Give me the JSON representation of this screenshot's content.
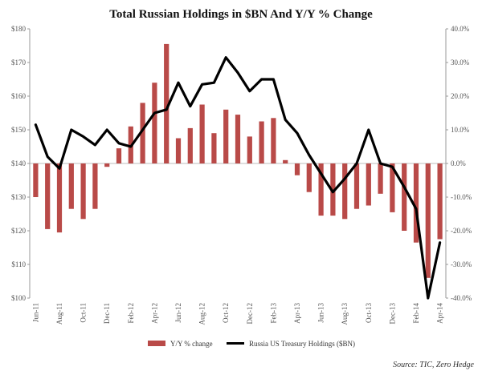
{
  "chart_data": {
    "type": "bar+line",
    "title": "Total Russian Holdings in $BN And Y/Y % Change",
    "source": "Source: TIC, Zero Hedge",
    "left_axis": {
      "ylim": [
        100,
        180
      ],
      "ticks": [
        "$100",
        "$110",
        "$120",
        "$130",
        "$140",
        "$150",
        "$160",
        "$170",
        "$180"
      ]
    },
    "right_axis": {
      "ylim": [
        -40,
        40
      ],
      "ticks": [
        "-40.0%",
        "-30.0%",
        "-20.0%",
        "-10.0%",
        "0.0%",
        "10.0%",
        "20.0%",
        "30.0%",
        "40.0%"
      ]
    },
    "x_tick_labels": [
      "Jun-11",
      "Aug-11",
      "Oct-11",
      "Dec-11",
      "Feb-12",
      "Apr-12",
      "Jun-12",
      "Aug-12",
      "Oct-12",
      "Dec-12",
      "Feb-13",
      "Apr-13",
      "Jun-13",
      "Aug-13",
      "Oct-13",
      "Dec-13",
      "Feb-14",
      "Apr-14"
    ],
    "categories": [
      "Jun-11",
      "Jul-11",
      "Aug-11",
      "Sep-11",
      "Oct-11",
      "Nov-11",
      "Dec-11",
      "Jan-12",
      "Feb-12",
      "Mar-12",
      "Apr-12",
      "May-12",
      "Jun-12",
      "Jul-12",
      "Aug-12",
      "Sep-12",
      "Oct-12",
      "Nov-12",
      "Dec-12",
      "Jan-13",
      "Feb-13",
      "Mar-13",
      "Apr-13",
      "May-13",
      "Jun-13",
      "Jul-13",
      "Aug-13",
      "Sep-13",
      "Oct-13",
      "Nov-13",
      "Dec-13",
      "Jan-14",
      "Feb-14",
      "Mar-14",
      "Apr-14"
    ],
    "series": [
      {
        "name": "Y/Y % change",
        "kind": "bar",
        "axis": "right",
        "color": "#b94a48",
        "values": [
          -10,
          -19.5,
          -20.5,
          -13.5,
          -16.5,
          -13.5,
          -1,
          4.5,
          11,
          18,
          24,
          35.5,
          7.5,
          10.5,
          17.5,
          9,
          16,
          14.5,
          8,
          12.5,
          13.5,
          1,
          -3.5,
          -8.5,
          -15.5,
          -15.5,
          -16.5,
          -13.5,
          -12.5,
          -9,
          -14.5,
          -20,
          -23.5,
          -34,
          -22.5
        ]
      },
      {
        "name": "Russia US Treasury Holdings ($BN)",
        "kind": "line",
        "axis": "left",
        "color": "#000000",
        "values": [
          151.5,
          142,
          138.5,
          150,
          148,
          145.5,
          150,
          146,
          145,
          150,
          155,
          156,
          164,
          157,
          163.5,
          164,
          171.5,
          167,
          161.5,
          165,
          165,
          153,
          149,
          142.5,
          137,
          131.5,
          135.5,
          140,
          150,
          140,
          139,
          133,
          126.5,
          100,
          116.5
        ]
      }
    ],
    "legend": {
      "placement": "bottom-center",
      "entries": [
        "Y/Y % change",
        "Russia US Treasury Holdings ($BN)"
      ]
    },
    "grid": false
  }
}
